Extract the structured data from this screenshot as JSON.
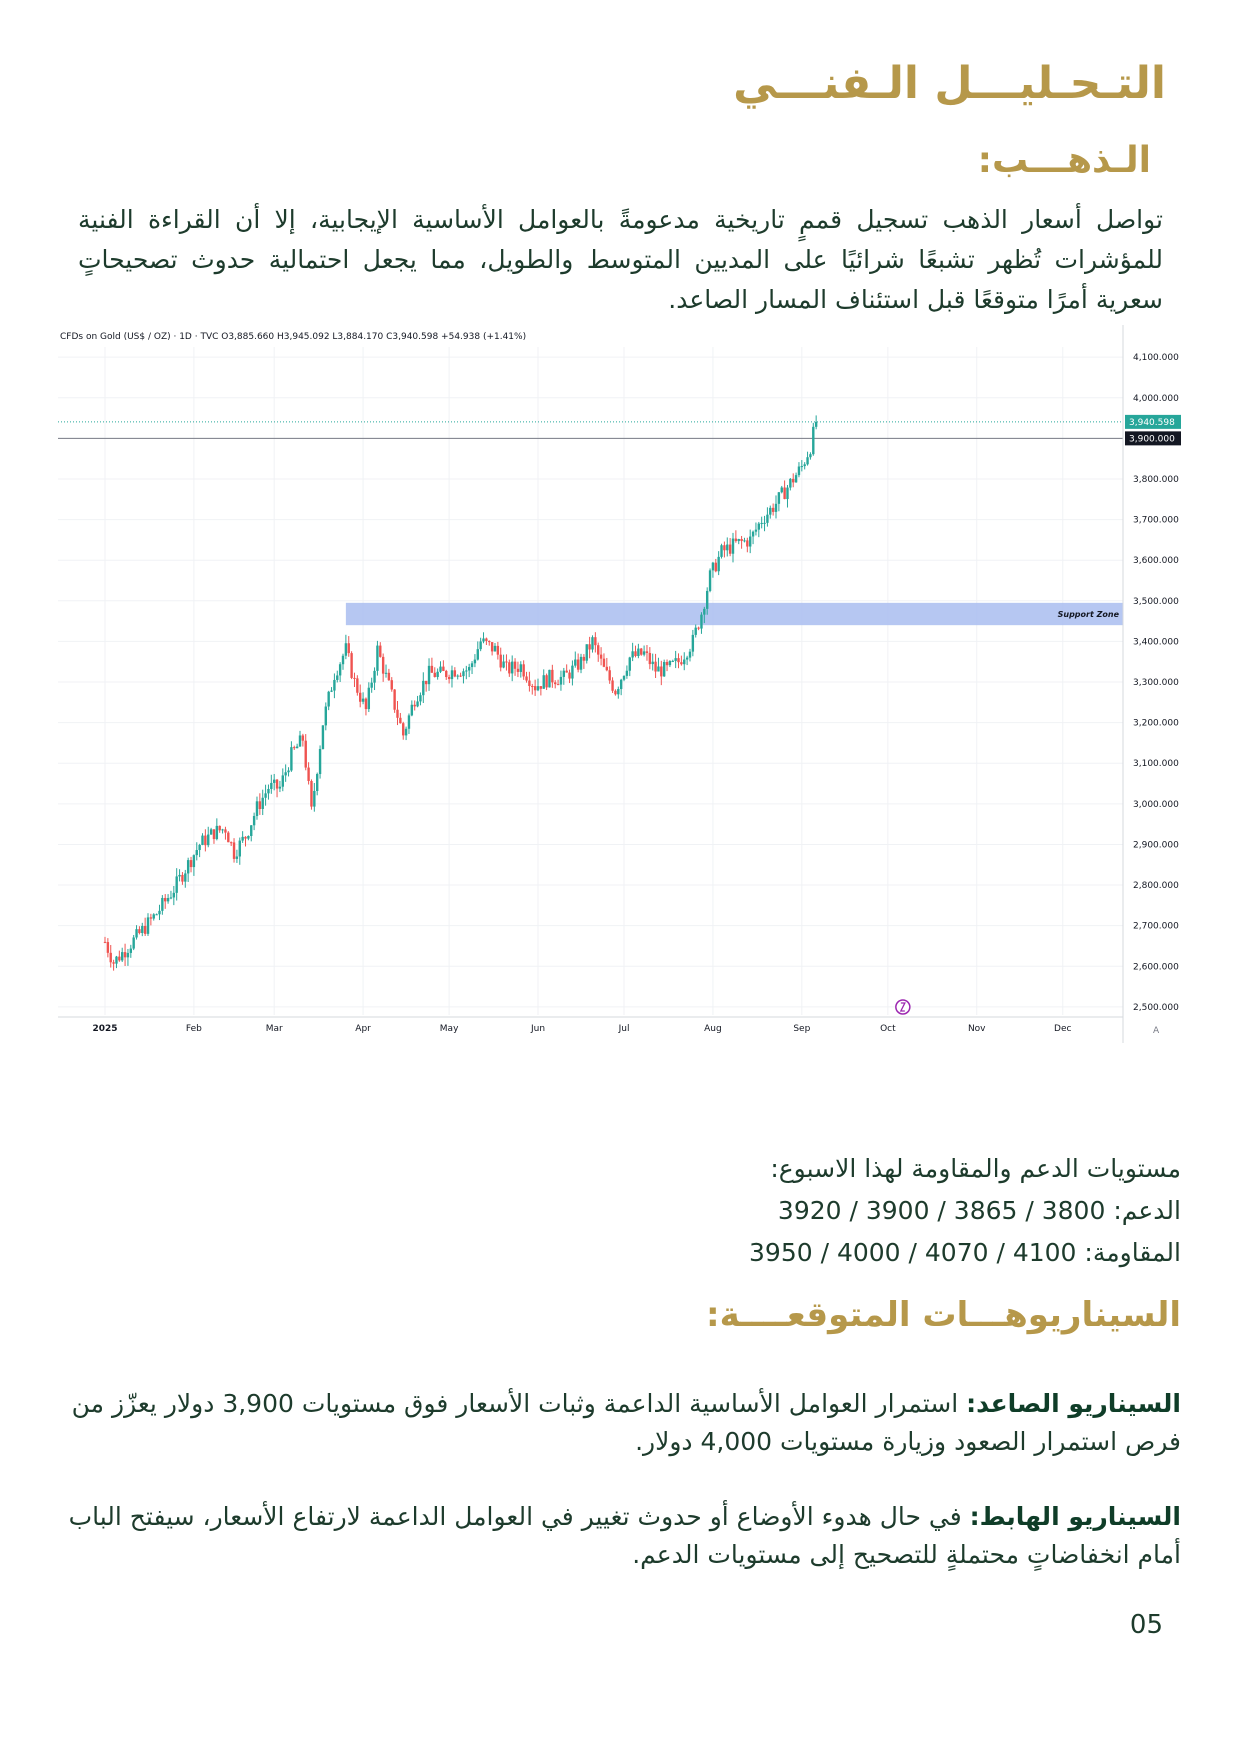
{
  "header": {
    "title": "التـحـليـــل الـفنـــي",
    "subtitle": "الـذهـــب:"
  },
  "intro_text": "تواصل أسعار الذهب تسجيل قممٍ تاريخية مدعومةً بالعوامل الأساسية الإيجابية، إلا أن القراءة الفنية للمؤشرات تُظهر تشبعًا شرائيًا على المديين المتوسط والطويل، مما يجعل احتمالية حدوث تصحيحاتٍ سعرية أمرًا متوقعًا قبل استئناف المسار الصاعد.",
  "chart_data": {
    "type": "candlestick",
    "title": "CFDs on Gold (US$ / OZ) · 1D · TVC",
    "ohlc_header": {
      "open": "O3,885.660",
      "high": "H3,945.092",
      "low": "L3,884.170",
      "close": "C3,940.598",
      "change": "+54.938 (+1.41%)"
    },
    "x_ticks": [
      "2025",
      "Feb",
      "Mar",
      "Apr",
      "May",
      "Jun",
      "Jul",
      "Aug",
      "Sep",
      "Oct",
      "Nov",
      "Dec"
    ],
    "y_ticks": [
      "4,100.000",
      "4,000.000",
      "3,900.000",
      "3,800.000",
      "3,700.000",
      "3,600.000",
      "3,500.000",
      "3,400.000",
      "3,300.000",
      "3,200.000",
      "3,100.000",
      "3,000.000",
      "2,900.000",
      "2,800.000",
      "2,700.000",
      "2,600.000",
      "2,500.000"
    ],
    "ylim": [
      2480,
      4125
    ],
    "last_price_label": "3,940.598",
    "last_price": 3940.598,
    "level_label": "3,900.000",
    "level": 3900,
    "zone": {
      "label": "Support Zone",
      "from": 3440,
      "to": 3495
    },
    "axis_corner": "A",
    "price_path": [
      [
        0,
        2660
      ],
      [
        3,
        2610
      ],
      [
        7,
        2640
      ],
      [
        12,
        2680
      ],
      [
        18,
        2730
      ],
      [
        24,
        2790
      ],
      [
        28,
        2840
      ],
      [
        33,
        2900
      ],
      [
        38,
        2930
      ],
      [
        42,
        2940
      ],
      [
        45,
        2880
      ],
      [
        49,
        2920
      ],
      [
        53,
        2990
      ],
      [
        57,
        3040
      ],
      [
        61,
        3040
      ],
      [
        65,
        3120
      ],
      [
        69,
        3160
      ],
      [
        72,
        2980
      ],
      [
        76,
        3200
      ],
      [
        80,
        3320
      ],
      [
        84,
        3380
      ],
      [
        87,
        3300
      ],
      [
        91,
        3230
      ],
      [
        95,
        3380
      ],
      [
        99,
        3290
      ],
      [
        104,
        3170
      ],
      [
        108,
        3260
      ],
      [
        113,
        3320
      ],
      [
        118,
        3320
      ],
      [
        122,
        3330
      ],
      [
        127,
        3330
      ],
      [
        131,
        3400
      ],
      [
        136,
        3380
      ],
      [
        140,
        3330
      ],
      [
        145,
        3340
      ],
      [
        150,
        3290
      ],
      [
        155,
        3310
      ],
      [
        160,
        3310
      ],
      [
        166,
        3350
      ],
      [
        170,
        3400
      ],
      [
        174,
        3330
      ],
      [
        178,
        3280
      ],
      [
        183,
        3360
      ],
      [
        188,
        3370
      ],
      [
        192,
        3330
      ],
      [
        196,
        3330
      ],
      [
        200,
        3350
      ],
      [
        205,
        3400
      ],
      [
        208,
        3470
      ],
      [
        211,
        3560
      ],
      [
        215,
        3620
      ],
      [
        220,
        3640
      ],
      [
        225,
        3650
      ],
      [
        229,
        3700
      ],
      [
        234,
        3740
      ],
      [
        238,
        3780
      ],
      [
        243,
        3830
      ],
      [
        246,
        3880
      ],
      [
        248,
        3940
      ]
    ],
    "x_month_days": [
      0,
      31,
      59,
      90,
      120,
      151,
      181,
      212,
      243,
      273,
      304,
      334
    ],
    "x_max": 370
  },
  "levels": {
    "heading": "مستويات الدعم والمقاومة لهذا الاسبوع:",
    "support_label": "الدعم:",
    "support_values": "3920 / 3900 / 3865 / 3800",
    "resistance_label": "المقاومة:",
    "resistance_values": "3950 / 4000 / 4070 / 4100"
  },
  "scenarios": {
    "heading": "السيناريوهـــات المتوقعــــة:",
    "bullish_label": "السيناريو الصاعد:",
    "bullish_text": " استمرار العوامل الأساسية الداعمة وثبات الأسعار فوق مستويات 3,900 دولار يعزّز من فرص استمرار الصعود وزيارة مستويات 4,000 دولار.",
    "bearish_label": "السيناريو الهابط:",
    "bearish_text": "  في حال هدوء الأوضاع أو حدوث تغيير في العوامل الداعمة لارتفاع الأسعار، سيفتح الباب أمام انخفاضاتٍ محتملةٍ للتصحيح إلى مستويات الدعم."
  },
  "page_number": "05",
  "colors": {
    "gold": "#b6984a",
    "text": "#1d3b2c",
    "up": "#26a69a",
    "down": "#ef5350",
    "zone": "#a9bdf0"
  }
}
